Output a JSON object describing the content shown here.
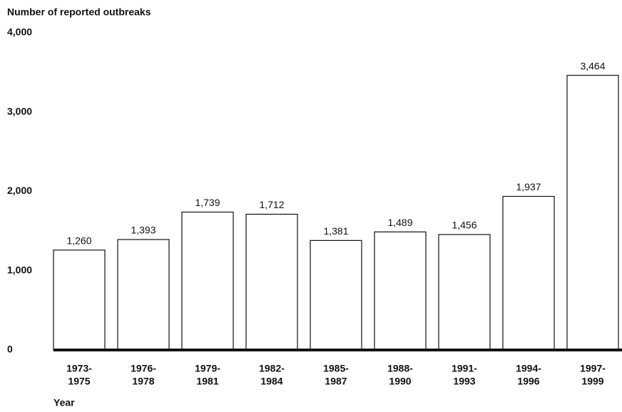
{
  "chart_data": {
    "type": "bar",
    "y_axis_label": "Number of reported outbreaks",
    "x_axis_label": "Year",
    "categories": [
      [
        "1973-",
        "1975"
      ],
      [
        "1976-",
        "1978"
      ],
      [
        "1979-",
        "1981"
      ],
      [
        "1982-",
        "1984"
      ],
      [
        "1985-",
        "1987"
      ],
      [
        "1988-",
        "1990"
      ],
      [
        "1991-",
        "1993"
      ],
      [
        "1994-",
        "1996"
      ],
      [
        "1997-",
        "1999"
      ]
    ],
    "values": [
      1260,
      1393,
      1739,
      1712,
      1381,
      1489,
      1456,
      1937,
      3464
    ],
    "value_labels": [
      "1,260",
      "1,393",
      "1,739",
      "1,712",
      "1,381",
      "1,489",
      "1,456",
      "1,937",
      "3,464"
    ],
    "color": "#ffffff",
    "ylim": [
      0,
      4000
    ],
    "yticks": [
      0,
      {
        "value": 1000,
        "label": "1,000"
      },
      {
        "value": 2000,
        "label": "2,000"
      },
      {
        "value": 3000,
        "label": "3,000"
      },
      {
        "value": 4000,
        "label": "4,000"
      }
    ],
    "grid": false
  }
}
